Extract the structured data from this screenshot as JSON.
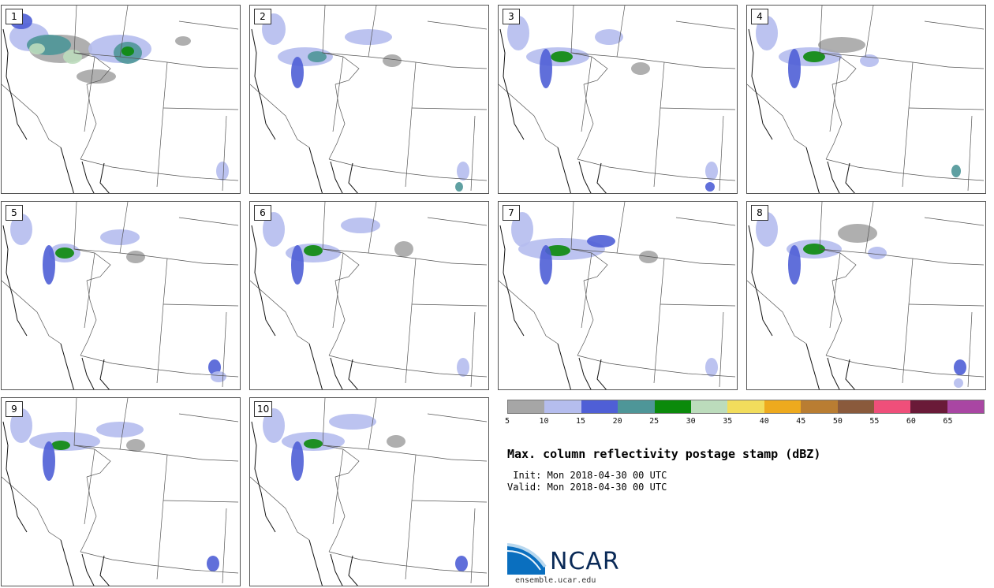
{
  "panels": [
    {
      "label": "1"
    },
    {
      "label": "2"
    },
    {
      "label": "3"
    },
    {
      "label": "4"
    },
    {
      "label": "5"
    },
    {
      "label": "6"
    },
    {
      "label": "7"
    },
    {
      "label": "8"
    },
    {
      "label": "9"
    },
    {
      "label": "10"
    }
  ],
  "colorbar": {
    "colors": [
      "#a6a6a6",
      "#b5bdee",
      "#4f5fd6",
      "#4e9698",
      "#0b8a0b",
      "#bcdcbc",
      "#f2dd5c",
      "#eeaa1e",
      "#b97d32",
      "#8a5a3c",
      "#ef4f7a",
      "#6a1a38",
      "#a946a3"
    ],
    "tick_labels": [
      "5",
      "10",
      "15",
      "20",
      "25",
      "30",
      "35",
      "40",
      "45",
      "50",
      "55",
      "60",
      "65"
    ]
  },
  "title": "Max. column reflectivity postage stamp (dBZ)",
  "init_text": " Init: Mon 2018-04-30 00 UTC",
  "valid_text": "Valid: Mon 2018-04-30 00 UTC",
  "logo": {
    "name": "NCAR",
    "url": "ensemble.ucar.edu"
  }
}
